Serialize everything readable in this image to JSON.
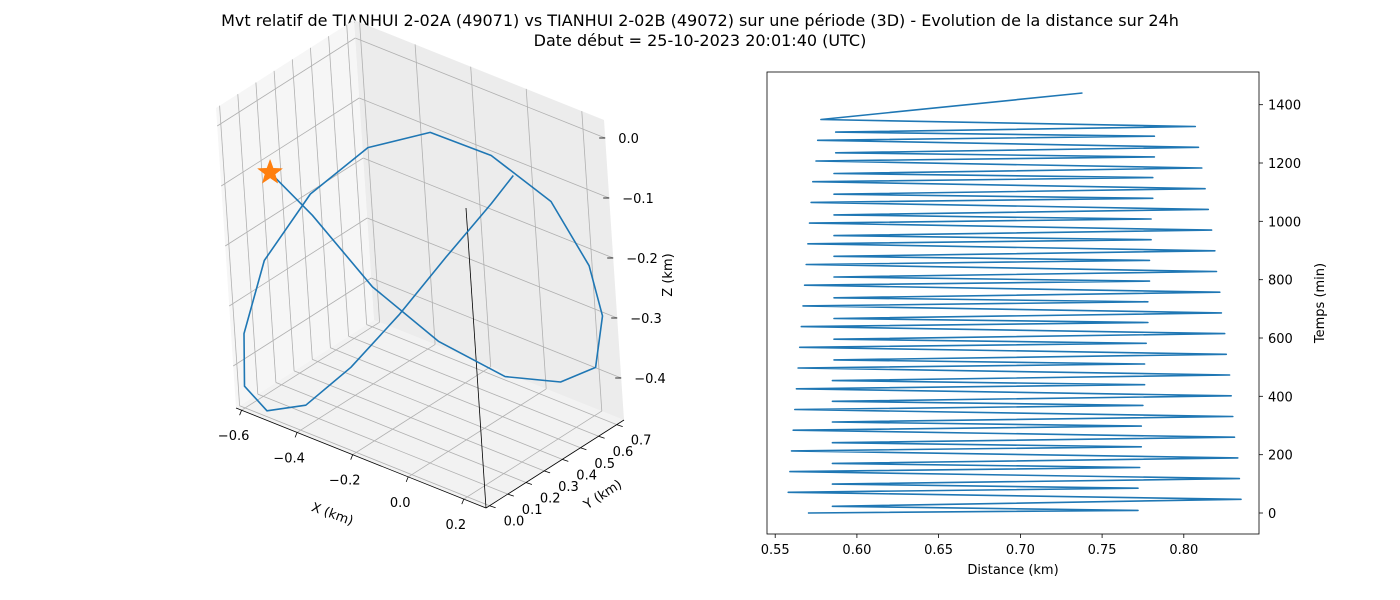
{
  "figure": {
    "title_line1": "Mvt relatif de TIANHUI 2-02A (49071) vs TIANHUI 2-02B (49072) sur une période (3D) - Evolution de la distance sur 24h",
    "title_line2": "Date début = 25-10-2023 20:01:40 (UTC)"
  },
  "colors": {
    "series": "#1f77b4",
    "marker": "#ff7f0e"
  },
  "chart_data": [
    {
      "type": "line3d",
      "xlabel": "X (km)",
      "ylabel": "Y (km)",
      "zlabel": "Z (km)",
      "xticks": [
        -0.6,
        -0.4,
        -0.2,
        0.0,
        0.2
      ],
      "yticks": [
        0.0,
        0.1,
        0.2,
        0.3,
        0.4,
        0.5,
        0.6,
        0.7
      ],
      "zticks": [
        0.0,
        -0.1,
        -0.2,
        -0.3,
        -0.4
      ],
      "xlim": [
        -0.62,
        0.28
      ],
      "ylim": [
        -0.02,
        0.74
      ],
      "zlim": [
        -0.47,
        0.03
      ],
      "grid": true,
      "series": [
        {
          "points": [
            [
              -0.45,
              0.0,
              -0.05
            ],
            [
              -0.36,
              0.08,
              -0.12
            ],
            [
              -0.24,
              0.2,
              -0.24
            ],
            [
              -0.1,
              0.33,
              -0.33
            ],
            [
              0.04,
              0.47,
              -0.39
            ],
            [
              0.16,
              0.59,
              -0.4
            ],
            [
              0.23,
              0.68,
              -0.38
            ],
            [
              0.24,
              0.72,
              -0.3
            ],
            [
              0.21,
              0.71,
              -0.22
            ],
            [
              0.12,
              0.66,
              -0.12
            ],
            [
              -0.02,
              0.56,
              -0.05
            ],
            [
              -0.17,
              0.46,
              -0.02
            ],
            [
              -0.32,
              0.34,
              -0.05
            ],
            [
              -0.46,
              0.22,
              -0.13
            ],
            [
              -0.57,
              0.11,
              -0.24
            ],
            [
              -0.6,
              0.02,
              -0.35
            ],
            [
              -0.59,
              -0.01,
              -0.43
            ],
            [
              -0.52,
              0.0,
              -0.46
            ],
            [
              -0.41,
              0.05,
              -0.44
            ],
            [
              -0.29,
              0.13,
              -0.37
            ],
            [
              -0.17,
              0.23,
              -0.28
            ],
            [
              -0.05,
              0.33,
              -0.18
            ],
            [
              0.06,
              0.43,
              -0.09
            ],
            [
              0.12,
              0.47,
              -0.04
            ]
          ]
        }
      ],
      "marker": {
        "symbol": "star",
        "point": [
          -0.45,
          0.0,
          -0.05
        ]
      }
    },
    {
      "type": "line",
      "xlabel": "Distance (km)",
      "ylabel": "Temps (min)",
      "xlim": [
        0.545,
        0.846
      ],
      "ylim": [
        -72,
        1512
      ],
      "xticks": [
        0.55,
        0.6,
        0.65,
        0.7,
        0.75,
        0.8
      ],
      "yticks": [
        0,
        200,
        400,
        600,
        800,
        1000,
        1200,
        1400
      ],
      "period_min": 94.8,
      "t_max": 1440,
      "series": [
        {
          "x": [
            0.57,
            0.772,
            0.585,
            0.835,
            0.558,
            0.772,
            0.585,
            0.834,
            0.559,
            0.773,
            0.585,
            0.833,
            0.56,
            0.774,
            0.585,
            0.831,
            0.561,
            0.774,
            0.585,
            0.83,
            0.562,
            0.775,
            0.585,
            0.829,
            0.563,
            0.776,
            0.585,
            0.828,
            0.564,
            0.776,
            0.586,
            0.826,
            0.565,
            0.777,
            0.586,
            0.825,
            0.566,
            0.778,
            0.586,
            0.823,
            0.567,
            0.778,
            0.586,
            0.822,
            0.568,
            0.779,
            0.586,
            0.82,
            0.569,
            0.779,
            0.586,
            0.819,
            0.57,
            0.78,
            0.586,
            0.817,
            0.571,
            0.78,
            0.586,
            0.815,
            0.572,
            0.781,
            0.586,
            0.813,
            0.573,
            0.781,
            0.586,
            0.811,
            0.575,
            0.782,
            0.587,
            0.809,
            0.576,
            0.782,
            0.587,
            0.807,
            0.578,
            0.738
          ],
          "y": [
            0,
            9,
            23,
            47,
            71,
            85,
            99,
            118,
            142,
            156,
            170,
            189,
            213,
            227,
            241,
            260,
            284,
            298,
            312,
            331,
            355,
            369,
            383,
            402,
            426,
            440,
            454,
            473,
            497,
            511,
            525,
            544,
            568,
            582,
            596,
            615,
            639,
            653,
            667,
            686,
            710,
            724,
            738,
            757,
            781,
            795,
            809,
            828,
            852,
            866,
            880,
            899,
            923,
            937,
            951,
            970,
            994,
            1008,
            1022,
            1041,
            1065,
            1079,
            1093,
            1112,
            1136,
            1150,
            1164,
            1183,
            1207,
            1221,
            1235,
            1254,
            1278,
            1292,
            1306,
            1325,
            1349,
            1440
          ]
        }
      ]
    }
  ]
}
